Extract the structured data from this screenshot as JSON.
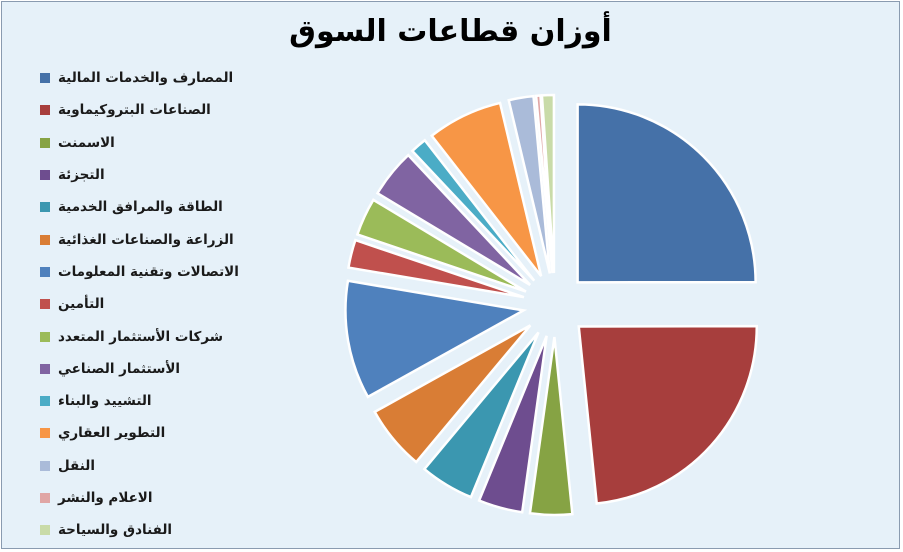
{
  "chart_data": {
    "type": "pie",
    "title": "أوزان قطاعات السوق",
    "legend_position": "left",
    "exploded": true,
    "categories": [
      "المصارف والخدمات المالية",
      "الصناعات البتروكيماوية",
      "الاسمنت",
      "التجزئة",
      "الطاقة والمرافق الخدمية",
      "الزراعة والصناعات الغذائية",
      "الاتصالات وتقنية المعلومات",
      "التأمين",
      "شركات الأستثمار المتعدد",
      "الأستثمار الصناعي",
      "التشييد والبناء",
      "التطوير العقاري",
      "النقل",
      "الاعلام والنشر",
      "الفنادق والسياحة"
    ],
    "values": [
      25.6,
      24.0,
      3.9,
      4.1,
      5.0,
      6.0,
      11.0,
      2.6,
      3.5,
      4.5,
      1.5,
      7.0,
      2.3,
      0.4,
      1.1
    ],
    "colors": [
      "#4571a8",
      "#a73e3d",
      "#86a344",
      "#6e4d8f",
      "#3b97b0",
      "#d97d35",
      "#4f81bd",
      "#c0504d",
      "#9bbb59",
      "#8064a2",
      "#4bacc6",
      "#f79646",
      "#aabbd9",
      "#e0a6a5",
      "#c9dba8"
    ]
  }
}
